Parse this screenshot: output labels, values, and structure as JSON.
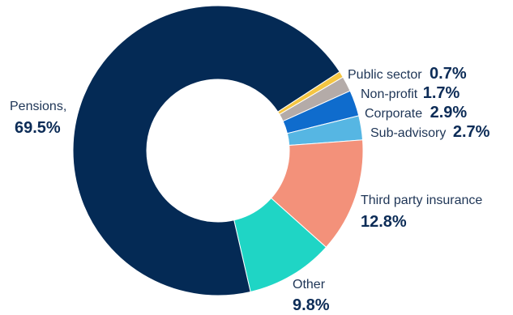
{
  "chart_data": {
    "type": "pie",
    "variant": "donut",
    "title": "",
    "slices": [
      {
        "label": "Public sector",
        "display": "0.7%",
        "value": 0.7,
        "color": "#f4c542"
      },
      {
        "label": "Non-profit",
        "display": "1.7%",
        "value": 1.7,
        "color": "#b4aba8"
      },
      {
        "label": "Corporate",
        "display": "2.9%",
        "value": 2.9,
        "color": "#0f6ccd"
      },
      {
        "label": "Sub-advisory",
        "display": "2.7%",
        "value": 2.7,
        "color": "#56b6e3"
      },
      {
        "label": "Third party insurance",
        "display": "12.8%",
        "value": 12.8,
        "color": "#f3917a"
      },
      {
        "label": "Other",
        "display": "9.8%",
        "value": 9.8,
        "color": "#1fd5c5"
      },
      {
        "label": "Pensions,",
        "display": "69.5%",
        "value": 69.5,
        "color": "#042a55"
      }
    ]
  }
}
